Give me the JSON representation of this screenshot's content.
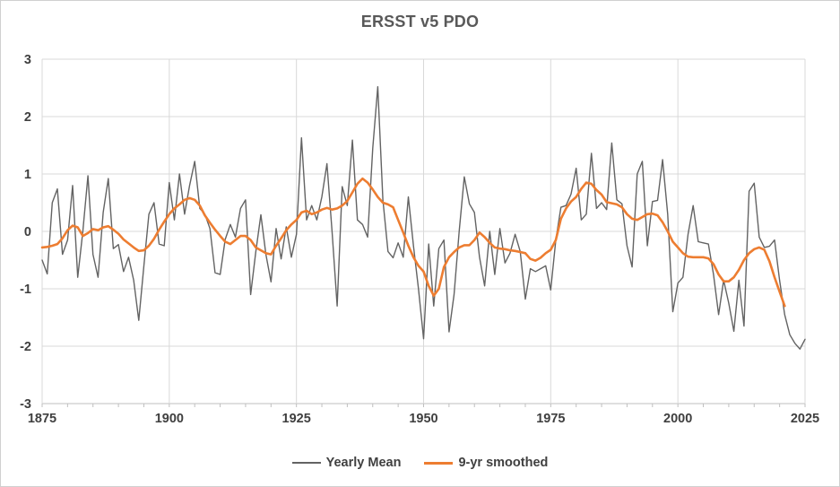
{
  "chart_data": {
    "type": "line",
    "title": "ERSST v5 PDO",
    "xlabel": "",
    "ylabel": "",
    "xlim": [
      1875,
      2025
    ],
    "ylim": [
      -3,
      3
    ],
    "x_ticks": [
      1875,
      1900,
      1925,
      1950,
      1975,
      2000,
      2025
    ],
    "x_minor_tick_step": 5,
    "y_ticks": [
      3,
      2,
      1,
      0,
      -1,
      -2,
      -3
    ],
    "grid": true,
    "legend_position": "bottom",
    "colors": {
      "grid": "#d9d9d9",
      "axis": "#bfbfbf",
      "tick_label": "#3f3f3f",
      "title": "#595959",
      "yearly_mean": "#636363",
      "smoothed": "#ed7d31",
      "background": "#ffffff"
    },
    "series": [
      {
        "name": "Yearly Mean",
        "id": "yearly-mean-line",
        "color": "#636363",
        "stroke_width": 1.4,
        "x_start": 1875,
        "values": [
          -0.5,
          -0.74,
          0.5,
          0.74,
          -0.4,
          -0.15,
          0.8,
          -0.8,
          0.0,
          0.97,
          -0.4,
          -0.8,
          0.33,
          0.92,
          -0.3,
          -0.23,
          -0.7,
          -0.45,
          -0.85,
          -1.55,
          -0.6,
          0.3,
          0.5,
          -0.22,
          -0.25,
          0.85,
          0.2,
          1.0,
          0.3,
          0.8,
          1.22,
          0.4,
          0.3,
          0.05,
          -0.72,
          -0.75,
          -0.14,
          0.12,
          -0.1,
          0.4,
          0.55,
          -1.1,
          -0.36,
          0.29,
          -0.4,
          -0.88,
          0.05,
          -0.48,
          0.08,
          -0.45,
          -0.05,
          1.63,
          0.2,
          0.45,
          0.2,
          0.6,
          1.18,
          0.0,
          -1.3,
          0.78,
          0.45,
          1.59,
          0.2,
          0.12,
          -0.1,
          1.45,
          2.52,
          0.55,
          -0.35,
          -0.46,
          -0.2,
          -0.45,
          0.6,
          -0.25,
          -1.0,
          -1.87,
          -0.22,
          -1.3,
          -0.3,
          -0.15,
          -1.75,
          -1.1,
          0.0,
          0.95,
          0.48,
          0.33,
          -0.45,
          -0.95,
          0.0,
          -0.75,
          0.05,
          -0.55,
          -0.38,
          -0.05,
          -0.35,
          -1.18,
          -0.65,
          -0.7,
          -0.65,
          -0.6,
          -1.02,
          -0.15,
          0.42,
          0.45,
          0.65,
          1.1,
          0.2,
          0.3,
          1.36,
          0.4,
          0.5,
          0.38,
          1.54,
          0.55,
          0.48,
          -0.25,
          -0.62,
          1.0,
          1.22,
          -0.25,
          0.52,
          0.54,
          1.25,
          0.3,
          -1.4,
          -0.9,
          -0.8,
          -0.05,
          0.45,
          -0.18,
          -0.2,
          -0.22,
          -0.75,
          -1.45,
          -0.85,
          -1.25,
          -1.74,
          -0.85,
          -1.65,
          0.7,
          0.84,
          -0.1,
          -0.28,
          -0.26,
          -0.15,
          -0.85,
          -1.45,
          -1.8,
          -1.95,
          -2.05,
          -1.88
        ]
      },
      {
        "name": "9-yr smoothed",
        "id": "smoothed-line",
        "color": "#ed7d31",
        "stroke_width": 2.6,
        "x_start": 1875,
        "values": [
          -0.28,
          -0.27,
          -0.25,
          -0.22,
          -0.12,
          0.02,
          0.1,
          0.07,
          -0.08,
          -0.03,
          0.04,
          0.02,
          0.07,
          0.09,
          0.03,
          -0.04,
          -0.14,
          -0.21,
          -0.28,
          -0.34,
          -0.33,
          -0.25,
          -0.13,
          0.03,
          0.17,
          0.3,
          0.4,
          0.47,
          0.55,
          0.58,
          0.55,
          0.45,
          0.28,
          0.15,
          0.03,
          -0.08,
          -0.18,
          -0.22,
          -0.15,
          -0.08,
          -0.08,
          -0.15,
          -0.28,
          -0.33,
          -0.38,
          -0.4,
          -0.25,
          -0.12,
          0.02,
          0.12,
          0.2,
          0.33,
          0.36,
          0.3,
          0.33,
          0.38,
          0.41,
          0.38,
          0.4,
          0.45,
          0.53,
          0.68,
          0.83,
          0.92,
          0.85,
          0.73,
          0.6,
          0.5,
          0.47,
          0.42,
          0.2,
          -0.02,
          -0.25,
          -0.45,
          -0.6,
          -0.7,
          -0.95,
          -1.12,
          -1.0,
          -0.62,
          -0.45,
          -0.36,
          -0.28,
          -0.24,
          -0.24,
          -0.15,
          -0.02,
          -0.1,
          -0.2,
          -0.28,
          -0.3,
          -0.31,
          -0.33,
          -0.34,
          -0.36,
          -0.38,
          -0.48,
          -0.51,
          -0.46,
          -0.38,
          -0.32,
          -0.15,
          0.22,
          0.4,
          0.52,
          0.6,
          0.74,
          0.85,
          0.83,
          0.72,
          0.64,
          0.51,
          0.49,
          0.47,
          0.42,
          0.3,
          0.22,
          0.2,
          0.25,
          0.3,
          0.31,
          0.28,
          0.16,
          0.0,
          -0.18,
          -0.28,
          -0.38,
          -0.44,
          -0.45,
          -0.45,
          -0.45,
          -0.47,
          -0.57,
          -0.75,
          -0.87,
          -0.87,
          -0.8,
          -0.67,
          -0.5,
          -0.38,
          -0.31,
          -0.28,
          -0.32,
          -0.52,
          -0.8,
          -1.05,
          -1.3
        ]
      }
    ]
  },
  "legend": {
    "items": [
      {
        "label": "Yearly Mean"
      },
      {
        "label": "9-yr smoothed"
      }
    ]
  }
}
